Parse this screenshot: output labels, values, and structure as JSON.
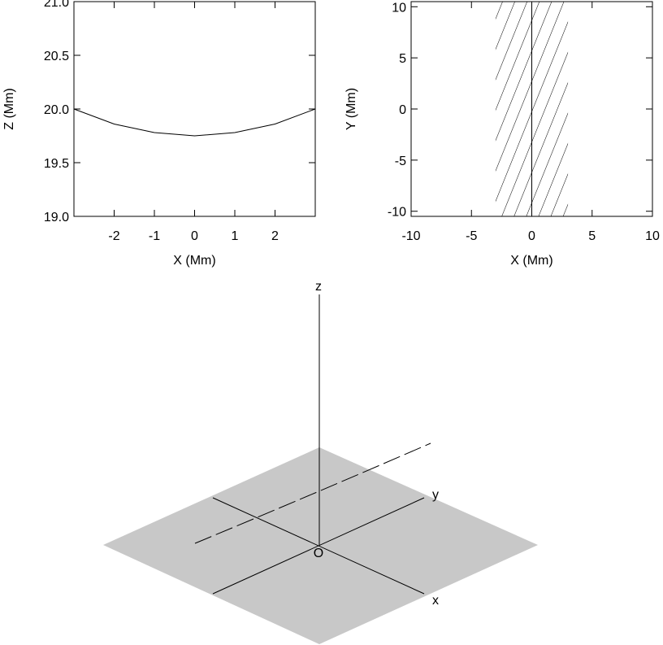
{
  "chart_data": [
    {
      "type": "line",
      "xlabel": "X (Mm)",
      "ylabel": "Z (Mm)",
      "x": [
        -3,
        -2,
        -1,
        0,
        1,
        2,
        3
      ],
      "values": [
        20.0,
        19.86,
        19.78,
        19.75,
        19.78,
        19.86,
        20.0
      ],
      "color": "#000000",
      "xlim": [
        -3,
        3
      ],
      "ylim": [
        19,
        21
      ],
      "xticks": [
        -2,
        -1,
        0,
        1,
        2
      ],
      "yticks": [
        {
          "value": 19,
          "label": "19.0"
        },
        19.5,
        {
          "value": 20,
          "label": "20.0"
        },
        20.5,
        {
          "value": 21,
          "label": "21.0"
        }
      ]
    },
    {
      "type": "band",
      "xlabel": "X (Mm)",
      "ylabel": "Y (Mm)",
      "band_x": [
        -3,
        3
      ],
      "line_x": 0,
      "hatch": true,
      "xlim": [
        -10,
        10
      ],
      "ylim": [
        -10.5,
        10.5
      ],
      "xticks": [
        -10,
        -5,
        0,
        5,
        10
      ],
      "yticks": [
        -10,
        -5,
        0,
        5,
        10
      ]
    },
    {
      "type": "surface3d",
      "axis_labels": [
        "x",
        "y",
        "z"
      ],
      "origin_label": "O",
      "plane_color": "#c8c8c8"
    }
  ]
}
